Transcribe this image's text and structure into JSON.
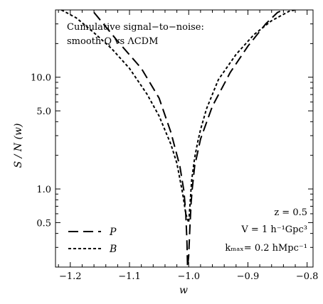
{
  "chart_data": {
    "type": "line",
    "title": "",
    "xlabel": "w",
    "ylabel": "S / N (w)",
    "xlim": [
      -1.225,
      -0.79
    ],
    "ylim": [
      0.2,
      40
    ],
    "yscale": "log",
    "x_ticks": [
      -1.2,
      -1.1,
      -1.0,
      -0.9,
      -0.8
    ],
    "x_tick_labels": [
      "−1.2",
      "−1.1",
      "−1.0",
      "−0.9",
      "−0.8"
    ],
    "y_ticks": [
      0.5,
      1.0,
      5.0,
      10.0
    ],
    "y_tick_labels": [
      "0.5",
      "1.0",
      "5.0",
      "10.0"
    ],
    "grid": false,
    "legend_position": "bottom-left",
    "annotation_lines": [
      "Cumulative signal−to−noise:",
      "smooth Q vs ΛCDM"
    ],
    "params_lines": [
      "z = 0.5",
      "V = 1 h⁻¹Gpc³",
      "kₘₐₓ= 0.2 hMpc⁻¹"
    ],
    "series": [
      {
        "name": "P",
        "dash": "long",
        "x": [
          -1.16,
          -1.12,
          -1.08,
          -1.05,
          -1.03,
          -1.015,
          -1.008,
          -1.005,
          -1.003,
          -1.002,
          -1.0,
          -0.998,
          -0.996,
          -0.994,
          -0.99,
          -0.98,
          -0.96,
          -0.93,
          -0.9,
          -0.87,
          -0.85,
          -0.84
        ],
        "y": [
          38,
          21,
          12,
          6.5,
          3.2,
          1.6,
          0.95,
          0.6,
          0.35,
          0.2,
          0.25,
          0.45,
          0.75,
          1.0,
          1.6,
          2.8,
          5.5,
          11,
          19,
          30,
          38,
          40
        ]
      },
      {
        "name": "B",
        "dash": "short",
        "x": [
          -1.215,
          -1.19,
          -1.16,
          -1.13,
          -1.1,
          -1.07,
          -1.05,
          -1.03,
          -1.02,
          -1.01,
          -1.005,
          -1.0,
          -0.998,
          -0.995,
          -0.99,
          -0.985,
          -0.98,
          -0.97,
          -0.95,
          -0.92,
          -0.89,
          -0.86,
          -0.83,
          -0.82
        ],
        "y": [
          40,
          34,
          25,
          18,
          12,
          7,
          4.5,
          2.5,
          1.7,
          0.9,
          0.6,
          0.5,
          0.7,
          1.2,
          1.9,
          2.6,
          3.4,
          5.2,
          9.5,
          16,
          24,
          32,
          39,
          40
        ]
      }
    ]
  }
}
